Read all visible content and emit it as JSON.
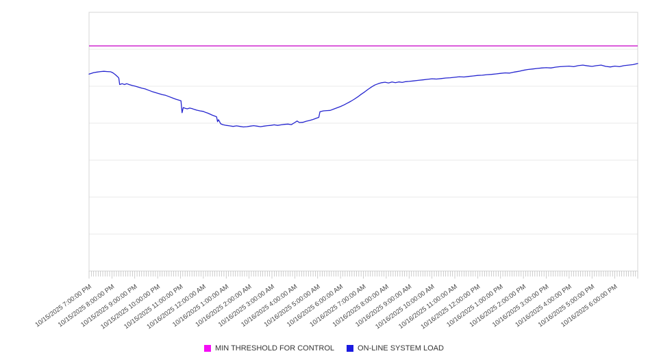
{
  "chart_data": {
    "type": "line",
    "title": "",
    "legend_position": "bottom",
    "grid": "horizontal-only",
    "x_axis": {
      "range_hours": [
        0,
        24
      ],
      "minor_tick_minutes": 6,
      "labels": [
        "10/15/2025 7:00:00 PM",
        "10/15/2025 8:00:00 PM",
        "10/15/2025 9:00:00 PM",
        "10/15/2025 10:00:00 PM",
        "10/15/2025 11:00:00 PM",
        "10/16/2025 12:00:00 AM",
        "10/16/2025 1:00:00 AM",
        "10/16/2025 2:00:00 AM",
        "10/16/2025 3:00:00 AM",
        "10/16/2025 4:00:00 AM",
        "10/16/2025 5:00:00 AM",
        "10/16/2025 6:00:00 AM",
        "10/16/2025 7:00:00 AM",
        "10/16/2025 8:00:00 AM",
        "10/16/2025 9:00:00 AM",
        "10/16/2025 10:00:00 AM",
        "10/16/2025 11:00:00 AM",
        "10/16/2025 12:00:00 PM",
        "10/16/2025 1:00:00 PM",
        "10/16/2025 2:00:00 PM",
        "10/16/2025 3:00:00 PM",
        "10/16/2025 4:00:00 PM",
        "10/16/2025 5:00:00 PM",
        "10/16/2025 6:00:00 PM"
      ]
    },
    "y_axis": {
      "range": [
        0,
        100
      ],
      "divisions": 7,
      "tick_labels_visible": false
    },
    "series": [
      {
        "name": "MIN THRESHOLD FOR CONTROL",
        "type": "threshold-line",
        "color": "#cb12cb",
        "swatch_color": "#f50df5",
        "value": 87.0
      },
      {
        "name": "ON-LINE SYSTEM LOAD",
        "type": "line",
        "color": "#2424cf",
        "swatch_color": "#1b1be0",
        "points": [
          [
            0,
            76.1
          ],
          [
            0.1,
            76.4
          ],
          [
            0.2,
            76.7
          ],
          [
            0.35,
            76.9
          ],
          [
            0.5,
            77.1
          ],
          [
            0.65,
            77.2
          ],
          [
            0.8,
            77.1
          ],
          [
            0.95,
            77.0
          ],
          [
            1.05,
            76.6
          ],
          [
            1.15,
            75.9
          ],
          [
            1.25,
            75.1
          ],
          [
            1.3,
            74.6
          ],
          [
            1.34,
            72.1
          ],
          [
            1.45,
            72.4
          ],
          [
            1.55,
            72.1
          ],
          [
            1.65,
            72.4
          ],
          [
            1.75,
            72.1
          ],
          [
            1.9,
            71.7
          ],
          [
            2.0,
            71.5
          ],
          [
            2.15,
            71.1
          ],
          [
            2.3,
            70.7
          ],
          [
            2.45,
            70.4
          ],
          [
            2.6,
            69.9
          ],
          [
            2.75,
            69.4
          ],
          [
            2.9,
            69.0
          ],
          [
            3.05,
            68.6
          ],
          [
            3.2,
            68.2
          ],
          [
            3.35,
            67.9
          ],
          [
            3.5,
            67.4
          ],
          [
            3.65,
            66.9
          ],
          [
            3.8,
            66.4
          ],
          [
            3.95,
            66.0
          ],
          [
            4.02,
            65.8
          ],
          [
            4.07,
            61.2
          ],
          [
            4.12,
            63.2
          ],
          [
            4.2,
            62.9
          ],
          [
            4.3,
            62.7
          ],
          [
            4.4,
            63.0
          ],
          [
            4.5,
            62.8
          ],
          [
            4.6,
            62.5
          ],
          [
            4.7,
            62.2
          ],
          [
            4.85,
            61.9
          ],
          [
            5.0,
            61.7
          ],
          [
            5.1,
            61.3
          ],
          [
            5.2,
            61.0
          ],
          [
            5.3,
            60.6
          ],
          [
            5.4,
            60.2
          ],
          [
            5.5,
            59.9
          ],
          [
            5.58,
            59.6
          ],
          [
            5.62,
            57.7
          ],
          [
            5.66,
            58.5
          ],
          [
            5.7,
            57.9
          ],
          [
            5.76,
            56.9
          ],
          [
            5.85,
            56.6
          ],
          [
            6.0,
            56.3
          ],
          [
            6.15,
            56.1
          ],
          [
            6.3,
            55.9
          ],
          [
            6.45,
            56.1
          ],
          [
            6.6,
            55.9
          ],
          [
            6.75,
            55.7
          ],
          [
            6.9,
            55.8
          ],
          [
            7.05,
            56.0
          ],
          [
            7.2,
            56.2
          ],
          [
            7.35,
            56.0
          ],
          [
            7.5,
            55.8
          ],
          [
            7.65,
            56.0
          ],
          [
            7.8,
            56.2
          ],
          [
            7.95,
            56.3
          ],
          [
            8.1,
            56.5
          ],
          [
            8.25,
            56.3
          ],
          [
            8.4,
            56.5
          ],
          [
            8.55,
            56.7
          ],
          [
            8.7,
            56.8
          ],
          [
            8.85,
            56.6
          ],
          [
            9.0,
            57.4
          ],
          [
            9.1,
            58.0
          ],
          [
            9.2,
            57.4
          ],
          [
            9.35,
            57.5
          ],
          [
            9.5,
            57.9
          ],
          [
            9.65,
            58.2
          ],
          [
            9.8,
            58.6
          ],
          [
            9.95,
            59.1
          ],
          [
            10.05,
            59.4
          ],
          [
            10.1,
            61.6
          ],
          [
            10.25,
            61.9
          ],
          [
            10.4,
            62.0
          ],
          [
            10.55,
            62.1
          ],
          [
            10.7,
            62.6
          ],
          [
            10.85,
            63.1
          ],
          [
            11.0,
            63.6
          ],
          [
            11.15,
            64.2
          ],
          [
            11.3,
            64.9
          ],
          [
            11.45,
            65.6
          ],
          [
            11.6,
            66.4
          ],
          [
            11.75,
            67.3
          ],
          [
            11.9,
            68.3
          ],
          [
            12.05,
            69.2
          ],
          [
            12.2,
            70.2
          ],
          [
            12.35,
            71.1
          ],
          [
            12.5,
            71.9
          ],
          [
            12.65,
            72.4
          ],
          [
            12.8,
            72.8
          ],
          [
            12.95,
            73.0
          ],
          [
            13.1,
            72.7
          ],
          [
            13.25,
            73.1
          ],
          [
            13.4,
            72.8
          ],
          [
            13.55,
            73.1
          ],
          [
            13.7,
            72.9
          ],
          [
            13.85,
            73.2
          ],
          [
            14.0,
            73.3
          ],
          [
            14.2,
            73.5
          ],
          [
            14.4,
            73.7
          ],
          [
            14.6,
            73.9
          ],
          [
            14.8,
            74.1
          ],
          [
            15.0,
            74.3
          ],
          [
            15.2,
            74.2
          ],
          [
            15.4,
            74.4
          ],
          [
            15.6,
            74.6
          ],
          [
            15.8,
            74.7
          ],
          [
            16.0,
            74.9
          ],
          [
            16.2,
            75.1
          ],
          [
            16.4,
            75.0
          ],
          [
            16.6,
            75.2
          ],
          [
            16.8,
            75.4
          ],
          [
            17.0,
            75.6
          ],
          [
            17.2,
            75.7
          ],
          [
            17.4,
            75.9
          ],
          [
            17.6,
            76.0
          ],
          [
            17.8,
            76.2
          ],
          [
            18.0,
            76.4
          ],
          [
            18.2,
            76.6
          ],
          [
            18.4,
            76.5
          ],
          [
            18.6,
            76.9
          ],
          [
            18.8,
            77.2
          ],
          [
            19.0,
            77.6
          ],
          [
            19.2,
            77.9
          ],
          [
            19.4,
            78.1
          ],
          [
            19.6,
            78.3
          ],
          [
            19.8,
            78.5
          ],
          [
            20.0,
            78.6
          ],
          [
            20.2,
            78.5
          ],
          [
            20.4,
            78.8
          ],
          [
            20.6,
            79.0
          ],
          [
            20.8,
            79.1
          ],
          [
            21.0,
            79.2
          ],
          [
            21.2,
            79.0
          ],
          [
            21.4,
            79.4
          ],
          [
            21.6,
            79.6
          ],
          [
            21.8,
            79.3
          ],
          [
            22.0,
            79.1
          ],
          [
            22.2,
            79.4
          ],
          [
            22.4,
            79.6
          ],
          [
            22.6,
            79.1
          ],
          [
            22.8,
            78.9
          ],
          [
            23.0,
            79.2
          ],
          [
            23.2,
            79.0
          ],
          [
            23.4,
            79.4
          ],
          [
            23.6,
            79.6
          ],
          [
            23.8,
            79.8
          ],
          [
            24.0,
            80.2
          ]
        ]
      }
    ],
    "style": {
      "grid_color": "#e9e9e9",
      "border_color": "#d4d4d4",
      "tick_color": "#b8b8b8",
      "axis_label_color": "#454545"
    }
  }
}
